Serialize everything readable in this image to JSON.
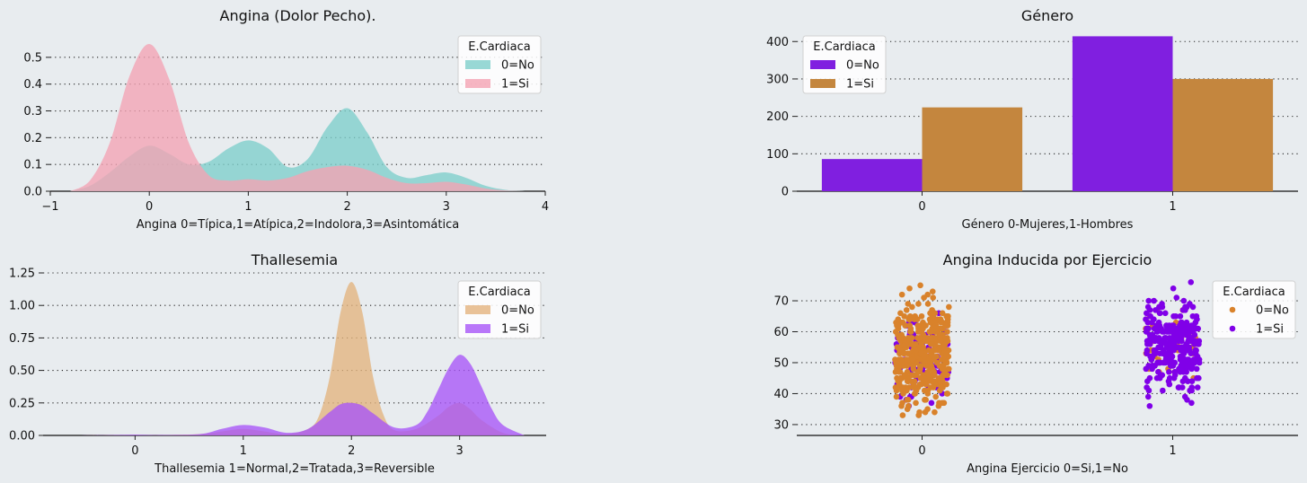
{
  "figure": {
    "background": "#e8ecef"
  },
  "chart_data": [
    {
      "type": "area",
      "title": "Angina (Dolor Pecho).",
      "xlabel": "Angina 0=Típica,1=Atípica,2=Indolora,3=Asintomática",
      "ylabel": "",
      "xlim": [
        -1,
        4
      ],
      "ylim": [
        0,
        0.58
      ],
      "xticks": [
        -1,
        0,
        1,
        2,
        3,
        4
      ],
      "xtick_labels": [
        "−1",
        "0",
        "1",
        "2",
        "3",
        "4"
      ],
      "yticks": [
        0.0,
        0.1,
        0.2,
        0.3,
        0.4,
        0.5
      ],
      "ytick_labels": [
        "0.0",
        "0.1",
        "0.2",
        "0.3",
        "0.4",
        "0.5"
      ],
      "grid": "horizontal-dotted",
      "legend": {
        "title": "E.Cardiaca",
        "placement": "top-right"
      },
      "series": [
        {
          "name": "0=No",
          "color": "#7ececa",
          "x": [
            -0.8,
            -0.6,
            -0.4,
            -0.2,
            0,
            0.2,
            0.4,
            0.6,
            0.8,
            1,
            1.2,
            1.4,
            1.6,
            1.8,
            2,
            2.2,
            2.4,
            2.6,
            2.8,
            3,
            3.2,
            3.4,
            3.6,
            3.8
          ],
          "y": [
            0.0,
            0.02,
            0.07,
            0.13,
            0.17,
            0.14,
            0.1,
            0.11,
            0.16,
            0.19,
            0.16,
            0.09,
            0.12,
            0.24,
            0.31,
            0.22,
            0.09,
            0.05,
            0.06,
            0.07,
            0.05,
            0.02,
            0.005,
            0.0
          ]
        },
        {
          "name": "1=Si",
          "color": "#f4a3b3",
          "x": [
            -0.8,
            -0.6,
            -0.4,
            -0.2,
            0,
            0.2,
            0.4,
            0.6,
            0.8,
            1,
            1.2,
            1.4,
            1.6,
            1.8,
            2,
            2.2,
            2.4,
            2.6,
            2.8,
            3,
            3.2,
            3.4,
            3.6,
            3.8
          ],
          "y": [
            0.0,
            0.04,
            0.18,
            0.43,
            0.55,
            0.42,
            0.18,
            0.06,
            0.04,
            0.045,
            0.04,
            0.05,
            0.075,
            0.09,
            0.095,
            0.08,
            0.05,
            0.03,
            0.03,
            0.035,
            0.025,
            0.01,
            0.003,
            0.0
          ]
        }
      ]
    },
    {
      "type": "bar",
      "title": "Género",
      "xlabel": "Género 0-Mujeres,1-Hombres",
      "ylabel": "",
      "categories": [
        "0",
        "1"
      ],
      "ylim": [
        0,
        415
      ],
      "yticks": [
        0,
        100,
        200,
        300,
        400
      ],
      "ytick_labels": [
        "0",
        "100",
        "200",
        "300",
        "400"
      ],
      "grid": "horizontal-dotted",
      "legend": {
        "title": "E.Cardiaca",
        "placement": "top-left"
      },
      "series": [
        {
          "name": "0=No",
          "color": "#801fe0",
          "values": [
            86,
            414
          ]
        },
        {
          "name": "1=Si",
          "color": "#c4863e",
          "values": [
            224,
            300
          ]
        }
      ]
    },
    {
      "type": "area",
      "title": "Thallesemia",
      "xlabel": "Thallesemia 1=Normal,2=Tratada,3=Reversible",
      "ylabel": "",
      "xlim": [
        -0.85,
        3.8
      ],
      "ylim": [
        0,
        1.25
      ],
      "xticks": [
        0,
        1,
        2,
        3
      ],
      "xtick_labels": [
        "0",
        "1",
        "2",
        "3"
      ],
      "yticks": [
        0.0,
        0.25,
        0.5,
        0.75,
        1.0,
        1.25
      ],
      "ytick_labels": [
        "0.00",
        "0.25",
        "0.50",
        "0.75",
        "1.00",
        "1.25"
      ],
      "grid": "horizontal-dotted",
      "legend": {
        "title": "E.Cardiaca",
        "placement": "top-right"
      },
      "series": [
        {
          "name": "0=No",
          "color": "#e3b37e",
          "x": [
            -0.6,
            -0.2,
            0,
            0.2,
            0.6,
            0.8,
            1,
            1.2,
            1.4,
            1.6,
            1.7,
            1.8,
            1.9,
            2,
            2.1,
            2.2,
            2.3,
            2.4,
            2.6,
            2.8,
            2.9,
            3,
            3.1,
            3.2,
            3.4,
            3.6
          ],
          "y": [
            0,
            0.002,
            0.003,
            0.002,
            0.01,
            0.03,
            0.05,
            0.03,
            0.01,
            0.05,
            0.15,
            0.45,
            0.95,
            1.18,
            0.95,
            0.45,
            0.15,
            0.04,
            0.05,
            0.15,
            0.22,
            0.25,
            0.2,
            0.12,
            0.02,
            0.0
          ]
        },
        {
          "name": "1=Si",
          "color": "#a855f7",
          "x": [
            -0.6,
            -0.2,
            0,
            0.2,
            0.6,
            0.8,
            1,
            1.2,
            1.4,
            1.6,
            1.8,
            1.9,
            2,
            2.1,
            2.2,
            2.4,
            2.6,
            2.7,
            2.8,
            2.9,
            3,
            3.1,
            3.2,
            3.3,
            3.4,
            3.6
          ],
          "y": [
            0,
            0.003,
            0.006,
            0.003,
            0.01,
            0.05,
            0.08,
            0.06,
            0.02,
            0.05,
            0.18,
            0.24,
            0.25,
            0.23,
            0.17,
            0.06,
            0.08,
            0.18,
            0.35,
            0.52,
            0.62,
            0.55,
            0.38,
            0.2,
            0.08,
            0.0
          ]
        }
      ]
    },
    {
      "type": "scatter",
      "title": "Angina Inducida por Ejercicio",
      "xlabel": "Angina Ejercicio 0=Si,1=No",
      "ylabel": "",
      "categories": [
        "0",
        "1"
      ],
      "ylim": [
        26.5,
        79
      ],
      "yticks": [
        30,
        40,
        50,
        60,
        70
      ],
      "ytick_labels": [
        "30",
        "40",
        "50",
        "60",
        "70"
      ],
      "grid": "horizontal-dotted",
      "legend": {
        "title": "E.Cardiaca",
        "placement": "top-right"
      },
      "series": [
        {
          "name": "0=No",
          "color": "#d9822b",
          "category_counts": [
            400,
            40
          ],
          "range": [
            [
              29,
              77
            ],
            [
              38,
              75
            ]
          ]
        },
        {
          "name": "1=Si",
          "color": "#8000e8",
          "category_counts": [
            110,
            300
          ],
          "range": [
            [
              34,
              71
            ],
            [
              34,
              77
            ]
          ]
        }
      ]
    }
  ]
}
